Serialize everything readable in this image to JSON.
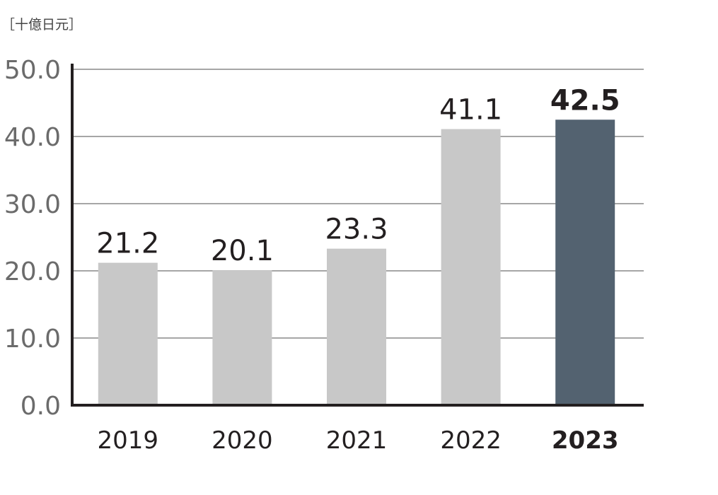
{
  "chart_data": {
    "type": "bar",
    "unit": "［十億日元］",
    "categories": [
      "2019",
      "2020",
      "2021",
      "2022",
      "2023"
    ],
    "values": [
      21.2,
      20.1,
      23.3,
      41.1,
      42.5
    ],
    "value_labels": [
      "21.2",
      "20.1",
      "23.3",
      "41.1",
      "42.5"
    ],
    "highlight": "2023",
    "ylim": [
      0,
      50
    ],
    "yticks": [
      "0.0",
      "10.0",
      "20.0",
      "30.0",
      "40.0",
      "50.0"
    ],
    "grid": true,
    "colors": {
      "bar": "#c8c8c8",
      "highlight_bar": "#536270",
      "axis": "#231f20",
      "grid": "#a6a6a6"
    }
  }
}
